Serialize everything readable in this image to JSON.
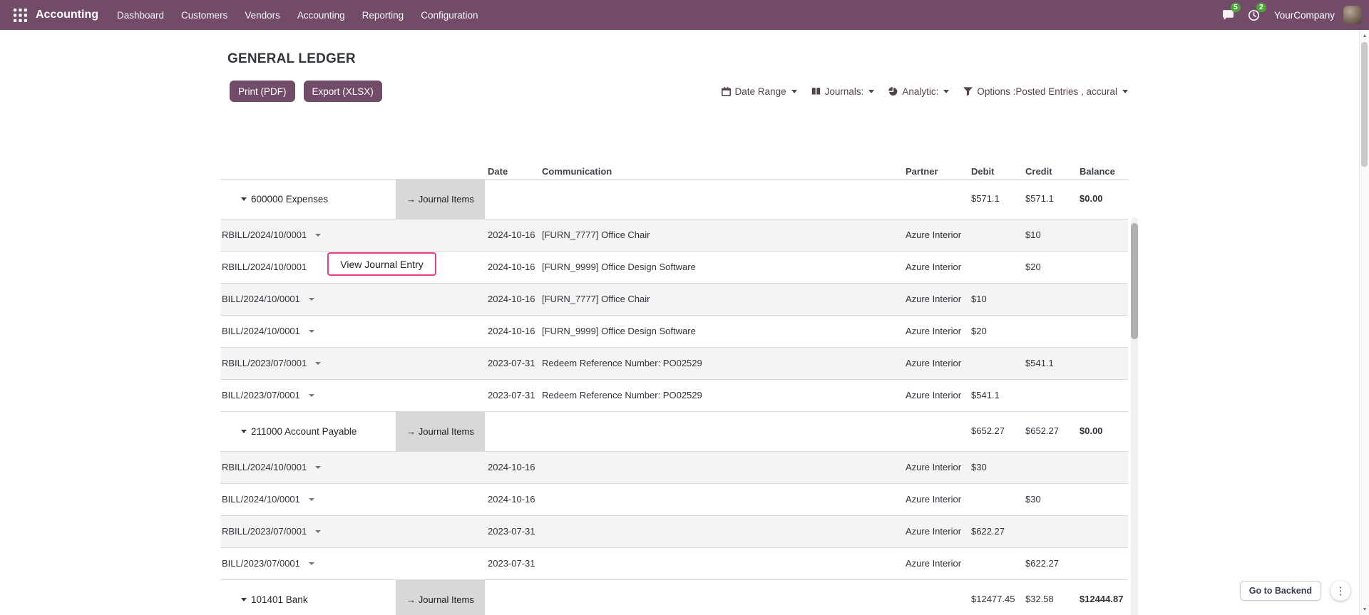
{
  "colors": {
    "brand": "#714B67",
    "highlight": "#E83E8C",
    "badge": "#4EA53C",
    "group_cell_bg": "#D8D8D8",
    "stripe": "#F4F4F4"
  },
  "topbar": {
    "app_name": "Accounting",
    "menus": [
      "Dashboard",
      "Customers",
      "Vendors",
      "Accounting",
      "Reporting",
      "Configuration"
    ],
    "messages_badge": "5",
    "activities_badge": "2",
    "company": "YourCompany"
  },
  "report": {
    "title": "GENERAL LEDGER",
    "buttons": {
      "print": "Print (PDF)",
      "export": "Export (XLSX)"
    },
    "filters": [
      {
        "icon": "calendar-icon",
        "label": "Date Range"
      },
      {
        "icon": "journal-icon",
        "label": "Journals:"
      },
      {
        "icon": "analytic-icon",
        "label": "Analytic:"
      },
      {
        "icon": "filter-icon",
        "label": "Options :Posted Entries , accural"
      }
    ]
  },
  "table": {
    "headers": {
      "date": "Date",
      "communication": "Communication",
      "partner": "Partner",
      "debit": "Debit",
      "credit": "Credit",
      "balance": "Balance"
    },
    "journal_items_label": "Journal Items",
    "view_journal_entry_label": "View Journal Entry",
    "rows": [
      {
        "type": "group",
        "name": "600000 Expenses",
        "debit": "$571.1",
        "credit": "$571.1",
        "balance": "$0.00"
      },
      {
        "type": "line",
        "move": "RBILL/2024/10/0001",
        "date": "2024-10-16",
        "communication": "[FURN_7777] Office Chair",
        "partner": "Azure Interior",
        "debit": "",
        "credit": "$10",
        "balance": ""
      },
      {
        "type": "line",
        "move": "RBILL/2024/10/0001",
        "date": "2024-10-16",
        "communication": "[FURN_9999] Office Design Software",
        "partner": "Azure Interior",
        "debit": "",
        "credit": "$20",
        "balance": "",
        "highlight": true
      },
      {
        "type": "line",
        "move": "BILL/2024/10/0001",
        "date": "2024-10-16",
        "communication": "[FURN_7777] Office Chair",
        "partner": "Azure Interior",
        "debit": "$10",
        "credit": "",
        "balance": ""
      },
      {
        "type": "line",
        "move": "BILL/2024/10/0001",
        "date": "2024-10-16",
        "communication": "[FURN_9999] Office Design Software",
        "partner": "Azure Interior",
        "debit": "$20",
        "credit": "",
        "balance": ""
      },
      {
        "type": "line",
        "move": "RBILL/2023/07/0001",
        "date": "2023-07-31",
        "communication": "Redeem Reference Number: PO02529",
        "partner": "Azure Interior",
        "debit": "",
        "credit": "$541.1",
        "balance": ""
      },
      {
        "type": "line",
        "move": "BILL/2023/07/0001",
        "date": "2023-07-31",
        "communication": "Redeem Reference Number: PO02529",
        "partner": "Azure Interior",
        "debit": "$541.1",
        "credit": "",
        "balance": ""
      },
      {
        "type": "group",
        "name": "211000 Account Payable",
        "debit": "$652.27",
        "credit": "$652.27",
        "balance": "$0.00"
      },
      {
        "type": "line",
        "move": "RBILL/2024/10/0001",
        "date": "2024-10-16",
        "communication": "",
        "partner": "Azure Interior",
        "debit": "$30",
        "credit": "",
        "balance": ""
      },
      {
        "type": "line",
        "move": "BILL/2024/10/0001",
        "date": "2024-10-16",
        "communication": "",
        "partner": "Azure Interior",
        "debit": "",
        "credit": "$30",
        "balance": ""
      },
      {
        "type": "line",
        "move": "RBILL/2023/07/0001",
        "date": "2023-07-31",
        "communication": "",
        "partner": "Azure Interior",
        "debit": "$622.27",
        "credit": "",
        "balance": ""
      },
      {
        "type": "line",
        "move": "BILL/2023/07/0001",
        "date": "2023-07-31",
        "communication": "",
        "partner": "Azure Interior",
        "debit": "",
        "credit": "$622.27",
        "balance": ""
      },
      {
        "type": "group",
        "name": "101401 Bank",
        "debit": "$12477.45",
        "credit": "$32.58",
        "balance": "$12444.87"
      }
    ]
  },
  "footer": {
    "go_to_backend": "Go to Backend"
  }
}
